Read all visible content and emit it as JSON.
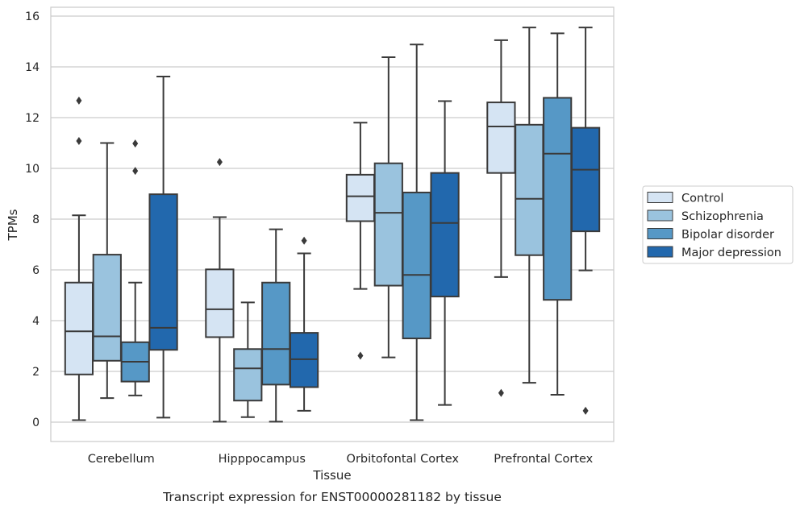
{
  "chart_data": {
    "type": "boxplot",
    "title": "",
    "caption": "Transcript expression for ENST00000281182 by tissue",
    "xlabel": "Tissue",
    "ylabel": "TPMs",
    "ylim": [
      -0.75,
      16.35
    ],
    "yticks": [
      0,
      2,
      4,
      6,
      8,
      10,
      12,
      14,
      16
    ],
    "grid": "horizontal",
    "legend_position": "right",
    "categories": [
      "Cerebellum",
      "Hipppocampus",
      "Orbitofontal Cortex",
      "Prefrontal Cortex"
    ],
    "series": [
      {
        "name": "Control",
        "color": "#d5e4f3",
        "boxes": [
          {
            "whislo": 0.08,
            "q1": 1.88,
            "med": 3.58,
            "q3": 5.5,
            "whishi": 8.15,
            "fliers": [
              11.08,
              12.67
            ]
          },
          {
            "whislo": 0.02,
            "q1": 3.35,
            "med": 4.45,
            "q3": 6.02,
            "whishi": 8.08,
            "fliers": [
              10.25
            ]
          },
          {
            "whislo": 5.25,
            "q1": 7.92,
            "med": 8.9,
            "q3": 9.75,
            "whishi": 11.8,
            "fliers": [
              2.62
            ]
          },
          {
            "whislo": 5.72,
            "q1": 9.82,
            "med": 11.65,
            "q3": 12.6,
            "whishi": 15.05,
            "fliers": [
              1.15
            ]
          }
        ]
      },
      {
        "name": "Schizophrenia",
        "color": "#9ac3de",
        "boxes": [
          {
            "whislo": 0.95,
            "q1": 2.42,
            "med": 3.38,
            "q3": 6.6,
            "whishi": 11.0,
            "fliers": []
          },
          {
            "whislo": 0.2,
            "q1": 0.85,
            "med": 2.12,
            "q3": 2.88,
            "whishi": 4.72,
            "fliers": []
          },
          {
            "whislo": 2.55,
            "q1": 5.38,
            "med": 8.25,
            "q3": 10.2,
            "whishi": 14.38,
            "fliers": []
          },
          {
            "whislo": 1.55,
            "q1": 6.58,
            "med": 8.8,
            "q3": 11.72,
            "whishi": 15.55,
            "fliers": []
          }
        ]
      },
      {
        "name": "Bipolar disorder",
        "color": "#5698c6",
        "boxes": [
          {
            "whislo": 1.05,
            "q1": 1.6,
            "med": 2.38,
            "q3": 3.15,
            "whishi": 5.5,
            "fliers": [
              9.9,
              10.98
            ]
          },
          {
            "whislo": 0.02,
            "q1": 1.48,
            "med": 2.88,
            "q3": 5.5,
            "whishi": 7.6,
            "fliers": []
          },
          {
            "whislo": 0.08,
            "q1": 3.3,
            "med": 5.8,
            "q3": 9.05,
            "whishi": 14.88,
            "fliers": []
          },
          {
            "whislo": 1.08,
            "q1": 4.82,
            "med": 10.58,
            "q3": 12.78,
            "whishi": 15.32,
            "fliers": []
          }
        ]
      },
      {
        "name": "Major depression",
        "color": "#2268ad",
        "boxes": [
          {
            "whislo": 0.18,
            "q1": 2.85,
            "med": 3.72,
            "q3": 8.98,
            "whishi": 13.62,
            "fliers": []
          },
          {
            "whislo": 0.45,
            "q1": 1.38,
            "med": 2.48,
            "q3": 3.52,
            "whishi": 6.65,
            "fliers": [
              7.15
            ]
          },
          {
            "whislo": 0.68,
            "q1": 4.95,
            "med": 7.85,
            "q3": 9.82,
            "whishi": 12.65,
            "fliers": []
          },
          {
            "whislo": 5.98,
            "q1": 7.52,
            "med": 9.95,
            "q3": 11.6,
            "whishi": 15.55,
            "fliers": [
              0.45
            ]
          }
        ]
      }
    ]
  }
}
